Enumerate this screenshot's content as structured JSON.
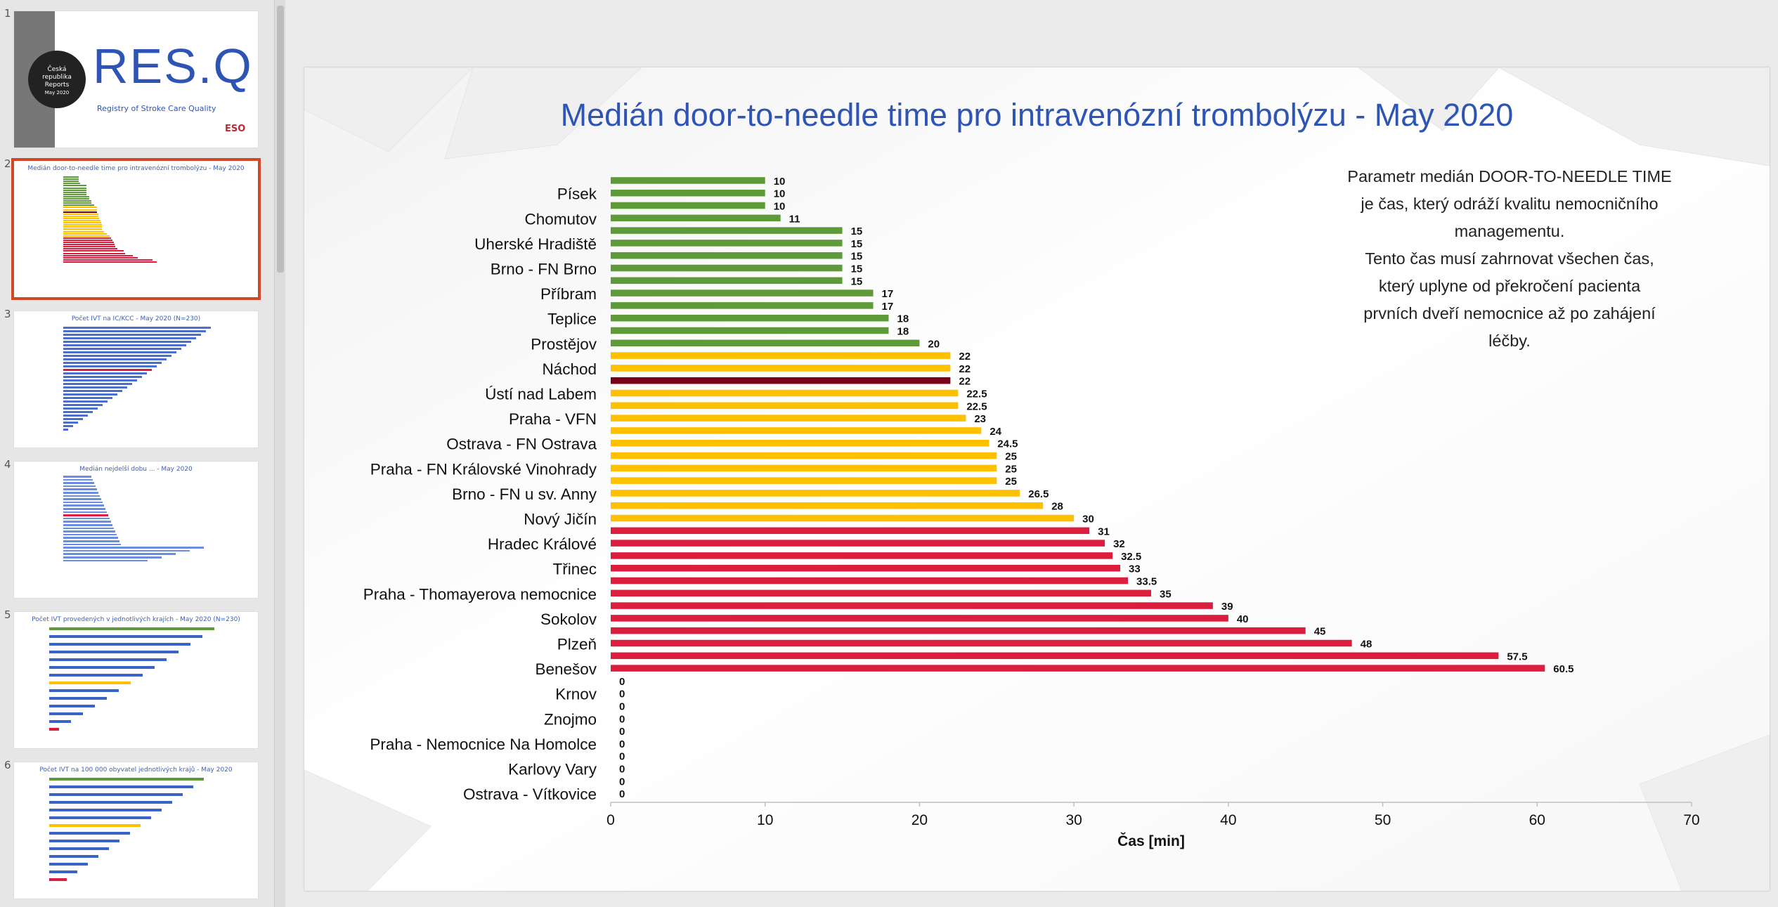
{
  "app": {
    "slides": [
      {
        "number": "1",
        "texts": [
          "Česká",
          "republika",
          "Reports",
          "May 2020"
        ],
        "logo_text": "RES.Q",
        "logo_subtitle": "Registry of Stroke Care Quality",
        "brand": "ESO"
      },
      {
        "number": "2",
        "title": "Medián door-to-needle time pro intravenózní trombolýzu - May 2020",
        "selected": true
      },
      {
        "number": "3",
        "title": "Počet IVT na IC/KCC - May 2020 (N=230)"
      },
      {
        "number": "4",
        "title": "Medián nejdelší dobu ... - May 2020"
      },
      {
        "number": "5",
        "title": "Počet IVT provedených v jednotlivých krajích - May 2020 (N=230)"
      },
      {
        "number": "6",
        "title": "Počet IVT na 100 000 obyvatel jednotlivých krajů - May 2020"
      }
    ]
  },
  "slide": {
    "title": "Medián door-to-needle time pro intravenózní trombolýzu - May 2020",
    "description": [
      "Parametr medián DOOR-TO-NEEDLE TIME",
      "je čas, který odráží kvalitu nemocničního",
      "managementu.",
      "Tento čas musí zahrnovat všechen čas,",
      "který uplyne od překročení pacienta",
      "prvních dveří nemocnice až po zahájení",
      "léčby."
    ]
  },
  "colors": {
    "green": "#5f9a3a",
    "yellow": "#ffc000",
    "red": "#db1e3e",
    "dark_red": "#7a0019",
    "title_blue": "#2f55b4",
    "selection": "#d24726"
  },
  "chart_data": {
    "type": "bar",
    "orientation": "horizontal",
    "xlabel": "Čas [min]",
    "xlim": [
      0,
      70
    ],
    "xticks": [
      "0",
      "10",
      "20",
      "30",
      "40",
      "50",
      "60",
      "70"
    ],
    "category_labels": [
      {
        "index": 1,
        "label": "Písek"
      },
      {
        "index": 3,
        "label": "Chomutov"
      },
      {
        "index": 5,
        "label": "Uherské Hradiště"
      },
      {
        "index": 7,
        "label": "Brno - FN Brno"
      },
      {
        "index": 9,
        "label": "Příbram"
      },
      {
        "index": 11,
        "label": "Teplice"
      },
      {
        "index": 13,
        "label": "Prostějov"
      },
      {
        "index": 15,
        "label": "Náchod"
      },
      {
        "index": 17,
        "label": "Ústí nad Labem"
      },
      {
        "index": 19,
        "label": "Praha - VFN"
      },
      {
        "index": 21,
        "label": "Ostrava - FN Ostrava"
      },
      {
        "index": 23,
        "label": "Praha - FN Královské Vinohrady"
      },
      {
        "index": 25,
        "label": "Brno - FN u sv. Anny"
      },
      {
        "index": 27,
        "label": "Nový Jičín"
      },
      {
        "index": 29,
        "label": "Hradec Králové"
      },
      {
        "index": 31,
        "label": "Třinec"
      },
      {
        "index": 33,
        "label": "Praha - Thomayerova nemocnice"
      },
      {
        "index": 35,
        "label": "Sokolov"
      },
      {
        "index": 37,
        "label": "Plzeň"
      },
      {
        "index": 39,
        "label": "Benešov"
      },
      {
        "index": 41,
        "label": "Krnov"
      },
      {
        "index": 43,
        "label": "Znojmo"
      },
      {
        "index": 45,
        "label": "Praha - Nemocnice Na Homolce"
      },
      {
        "index": 47,
        "label": "Karlovy Vary"
      },
      {
        "index": 49,
        "label": "Ostrava - Vítkovice"
      }
    ],
    "values": [
      10,
      10,
      10,
      11,
      15,
      15,
      15,
      15,
      15,
      17,
      17,
      18,
      18,
      20,
      22,
      22,
      22,
      22.5,
      22.5,
      23,
      24,
      24.5,
      25,
      25,
      25,
      26.5,
      28,
      30,
      31,
      32,
      32.5,
      33,
      33.5,
      35,
      39,
      40,
      45,
      48,
      57.5,
      60.5,
      0,
      0,
      0,
      0,
      0,
      0,
      0,
      0,
      0,
      0
    ],
    "value_labels": [
      "10",
      "10",
      "10",
      "11",
      "15",
      "15",
      "15",
      "15",
      "15",
      "17",
      "17",
      "18",
      "18",
      "20",
      "22",
      "22",
      "22",
      "22.5",
      "22.5",
      "23",
      "24",
      "24.5",
      "25",
      "25",
      "25",
      "26.5",
      "28",
      "30",
      "31",
      "32",
      "32.5",
      "33",
      "33.5",
      "35",
      "39",
      "40",
      "45",
      "48",
      "57.5",
      "60.5",
      "0",
      "0",
      "0",
      "0",
      "0",
      "0",
      "0",
      "0",
      "0",
      "0"
    ],
    "bar_colors": [
      "green",
      "green",
      "green",
      "green",
      "green",
      "green",
      "green",
      "green",
      "green",
      "green",
      "green",
      "green",
      "green",
      "green",
      "yellow",
      "yellow",
      "dark_red",
      "yellow",
      "yellow",
      "yellow",
      "yellow",
      "yellow",
      "yellow",
      "yellow",
      "yellow",
      "yellow",
      "yellow",
      "yellow",
      "red",
      "red",
      "red",
      "red",
      "red",
      "red",
      "red",
      "red",
      "red",
      "red",
      "red",
      "red",
      "red",
      "red",
      "red",
      "red",
      "red",
      "red",
      "red",
      "red",
      "red",
      "red"
    ]
  }
}
